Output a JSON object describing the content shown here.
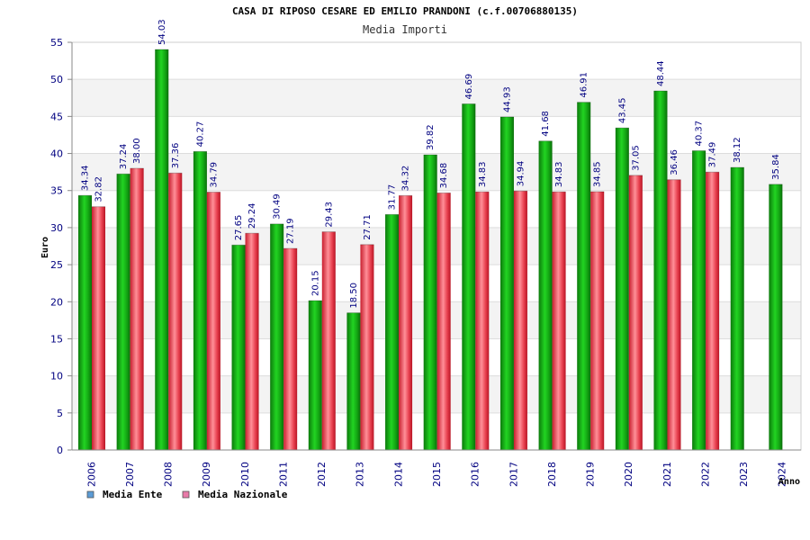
{
  "chart_data": {
    "type": "bar",
    "title": "CASA DI RIPOSO CESARE ED EMILIO PRANDONI (c.f.00706880135)",
    "subtitle": "Media Importi",
    "xlabel": "Anno",
    "ylabel": "Euro",
    "ylim": [
      0,
      55
    ],
    "yticks": [
      0,
      5,
      10,
      15,
      20,
      25,
      30,
      35,
      40,
      45,
      50,
      55
    ],
    "grid": true,
    "legend_position": "bottom-left",
    "categories": [
      "2006",
      "2007",
      "2008",
      "2009",
      "2010",
      "2011",
      "2012",
      "2013",
      "2014",
      "2015",
      "2016",
      "2017",
      "2018",
      "2019",
      "2020",
      "2021",
      "2022",
      "2023",
      "2024"
    ],
    "series": [
      {
        "name": "Media Ente",
        "color": "#1fae1f",
        "legend_color": "#5b9bd5",
        "values": [
          34.34,
          37.24,
          54.03,
          40.27,
          27.65,
          30.49,
          20.15,
          18.5,
          31.77,
          39.82,
          46.69,
          44.93,
          41.68,
          46.91,
          43.45,
          48.44,
          40.37,
          38.12,
          35.84
        ],
        "labels": [
          "34.34",
          "37.24",
          "54.03",
          "40.27",
          "27.65",
          "30.49",
          "20.15",
          "18.50",
          "31.77",
          "39.82",
          "46.69",
          "44.93",
          "41.68",
          "46.91",
          "43.45",
          "48.44",
          "40.37",
          "38.12",
          "35.84"
        ]
      },
      {
        "name": "Media Nazionale",
        "color": "#e8404f",
        "legend_color": "#e87aa8",
        "values": [
          32.82,
          38.0,
          37.36,
          34.79,
          29.24,
          27.19,
          29.43,
          27.71,
          34.32,
          34.68,
          34.83,
          34.94,
          34.83,
          34.85,
          37.05,
          36.46,
          37.49,
          null,
          null
        ],
        "labels": [
          "32.82",
          "38.00",
          "37.36",
          "34.79",
          "29.24",
          "27.19",
          "29.43",
          "27.71",
          "34.32",
          "34.68",
          "34.83",
          "34.94",
          "34.83",
          "34.85",
          "37.05",
          "36.46",
          "37.49",
          null,
          null
        ]
      }
    ]
  }
}
